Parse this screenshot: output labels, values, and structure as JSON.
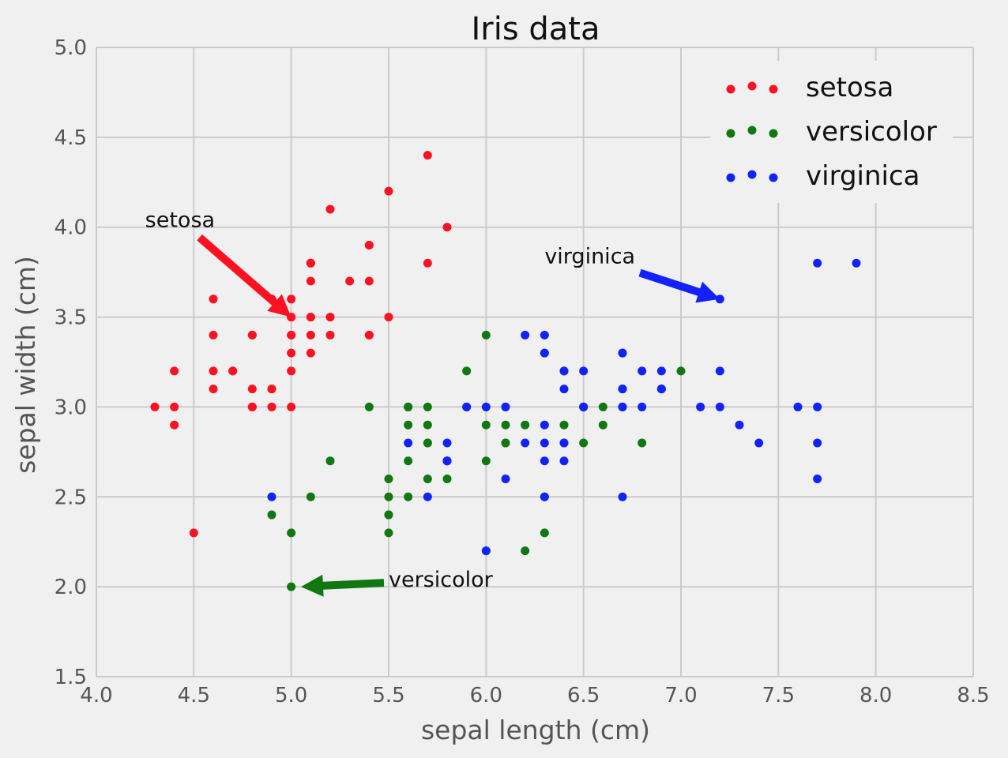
{
  "chart_data": {
    "type": "scatter",
    "title": "Iris data",
    "xlabel": "sepal length (cm)",
    "ylabel": "sepal width (cm)",
    "xlim": [
      4.0,
      8.5
    ],
    "ylim": [
      1.5,
      5.0
    ],
    "xticks": [
      "4.0",
      "4.5",
      "5.0",
      "5.5",
      "6.0",
      "6.5",
      "7.0",
      "7.5",
      "8.0",
      "8.5"
    ],
    "yticks": [
      "1.5",
      "2.0",
      "2.5",
      "3.0",
      "3.5",
      "4.0",
      "4.5",
      "5.0"
    ],
    "grid": true,
    "legend_position": "top-right",
    "series": [
      {
        "name": "setosa",
        "color": "#ff1122",
        "points": [
          [
            5.1,
            3.5
          ],
          [
            4.9,
            3.0
          ],
          [
            4.7,
            3.2
          ],
          [
            4.6,
            3.1
          ],
          [
            5.0,
            3.6
          ],
          [
            5.4,
            3.9
          ],
          [
            4.6,
            3.4
          ],
          [
            5.0,
            3.4
          ],
          [
            4.4,
            2.9
          ],
          [
            4.9,
            3.1
          ],
          [
            5.4,
            3.7
          ],
          [
            4.8,
            3.4
          ],
          [
            4.8,
            3.0
          ],
          [
            4.3,
            3.0
          ],
          [
            5.8,
            4.0
          ],
          [
            5.7,
            4.4
          ],
          [
            5.4,
            3.9
          ],
          [
            5.1,
            3.5
          ],
          [
            5.7,
            3.8
          ],
          [
            5.1,
            3.8
          ],
          [
            5.4,
            3.4
          ],
          [
            5.1,
            3.7
          ],
          [
            4.6,
            3.6
          ],
          [
            5.1,
            3.3
          ],
          [
            4.8,
            3.4
          ],
          [
            5.0,
            3.0
          ],
          [
            5.0,
            3.4
          ],
          [
            5.2,
            3.5
          ],
          [
            5.2,
            3.4
          ],
          [
            4.7,
            3.2
          ],
          [
            4.8,
            3.1
          ],
          [
            5.4,
            3.4
          ],
          [
            5.2,
            4.1
          ],
          [
            5.5,
            4.2
          ],
          [
            4.9,
            3.1
          ],
          [
            5.0,
            3.2
          ],
          [
            5.5,
            3.5
          ],
          [
            4.9,
            3.6
          ],
          [
            4.4,
            3.0
          ],
          [
            5.1,
            3.4
          ],
          [
            5.0,
            3.5
          ],
          [
            4.5,
            2.3
          ],
          [
            4.4,
            3.2
          ],
          [
            5.0,
            3.5
          ],
          [
            5.1,
            3.8
          ],
          [
            4.8,
            3.0
          ],
          [
            5.1,
            3.8
          ],
          [
            4.6,
            3.2
          ],
          [
            5.3,
            3.7
          ],
          [
            5.0,
            3.3
          ]
        ]
      },
      {
        "name": "versicolor",
        "color": "#117711",
        "points": [
          [
            7.0,
            3.2
          ],
          [
            6.4,
            3.2
          ],
          [
            6.9,
            3.1
          ],
          [
            5.5,
            2.3
          ],
          [
            6.5,
            2.8
          ],
          [
            5.7,
            2.8
          ],
          [
            6.3,
            3.3
          ],
          [
            4.9,
            2.4
          ],
          [
            6.6,
            2.9
          ],
          [
            5.2,
            2.7
          ],
          [
            5.0,
            2.0
          ],
          [
            5.9,
            3.0
          ],
          [
            6.0,
            2.2
          ],
          [
            6.1,
            2.9
          ],
          [
            5.6,
            2.9
          ],
          [
            6.7,
            3.1
          ],
          [
            5.6,
            3.0
          ],
          [
            5.8,
            2.7
          ],
          [
            6.2,
            2.2
          ],
          [
            5.6,
            2.5
          ],
          [
            5.9,
            3.2
          ],
          [
            6.1,
            2.8
          ],
          [
            6.3,
            2.5
          ],
          [
            6.1,
            2.8
          ],
          [
            6.4,
            2.9
          ],
          [
            6.6,
            3.0
          ],
          [
            6.8,
            2.8
          ],
          [
            6.7,
            3.0
          ],
          [
            6.0,
            2.9
          ],
          [
            5.7,
            2.6
          ],
          [
            5.5,
            2.4
          ],
          [
            5.5,
            2.4
          ],
          [
            5.8,
            2.7
          ],
          [
            6.0,
            2.7
          ],
          [
            5.4,
            3.0
          ],
          [
            6.0,
            3.4
          ],
          [
            6.7,
            3.1
          ],
          [
            6.3,
            2.3
          ],
          [
            5.6,
            3.0
          ],
          [
            5.5,
            2.5
          ],
          [
            5.5,
            2.6
          ],
          [
            6.1,
            3.0
          ],
          [
            5.8,
            2.6
          ],
          [
            5.0,
            2.3
          ],
          [
            5.6,
            2.7
          ],
          [
            5.7,
            3.0
          ],
          [
            5.7,
            2.9
          ],
          [
            6.2,
            2.9
          ],
          [
            5.1,
            2.5
          ],
          [
            5.7,
            2.8
          ]
        ]
      },
      {
        "name": "virginica",
        "color": "#1122ff",
        "points": [
          [
            6.3,
            3.3
          ],
          [
            5.8,
            2.7
          ],
          [
            7.1,
            3.0
          ],
          [
            6.3,
            2.9
          ],
          [
            6.5,
            3.0
          ],
          [
            7.6,
            3.0
          ],
          [
            4.9,
            2.5
          ],
          [
            7.3,
            2.9
          ],
          [
            6.7,
            2.5
          ],
          [
            7.2,
            3.6
          ],
          [
            6.5,
            3.2
          ],
          [
            6.4,
            2.7
          ],
          [
            6.8,
            3.0
          ],
          [
            5.7,
            2.5
          ],
          [
            5.8,
            2.8
          ],
          [
            6.4,
            3.2
          ],
          [
            6.5,
            3.0
          ],
          [
            7.7,
            3.8
          ],
          [
            7.7,
            2.6
          ],
          [
            6.0,
            2.2
          ],
          [
            6.9,
            3.2
          ],
          [
            5.6,
            2.8
          ],
          [
            7.7,
            2.8
          ],
          [
            6.3,
            2.7
          ],
          [
            6.7,
            3.3
          ],
          [
            7.2,
            3.2
          ],
          [
            6.2,
            2.8
          ],
          [
            6.1,
            3.0
          ],
          [
            6.4,
            2.8
          ],
          [
            7.2,
            3.0
          ],
          [
            7.4,
            2.8
          ],
          [
            7.9,
            3.8
          ],
          [
            6.4,
            2.8
          ],
          [
            6.3,
            2.8
          ],
          [
            6.1,
            2.6
          ],
          [
            7.7,
            3.0
          ],
          [
            6.3,
            3.4
          ],
          [
            6.4,
            3.1
          ],
          [
            6.0,
            3.0
          ],
          [
            6.9,
            3.1
          ],
          [
            6.7,
            3.1
          ],
          [
            6.9,
            3.1
          ],
          [
            5.8,
            2.7
          ],
          [
            6.8,
            3.2
          ],
          [
            6.7,
            3.3
          ],
          [
            6.7,
            3.0
          ],
          [
            6.3,
            2.5
          ],
          [
            6.5,
            3.0
          ],
          [
            6.2,
            3.4
          ],
          [
            5.9,
            3.0
          ]
        ]
      }
    ],
    "annotations": [
      {
        "text": "setosa",
        "color": "#ff1122",
        "point": [
          5.0,
          3.5
        ],
        "text_at": [
          4.25,
          4.0
        ]
      },
      {
        "text": "virginica",
        "color": "#1122ff",
        "point": [
          7.2,
          3.6
        ],
        "text_at": [
          6.3,
          3.8
        ]
      },
      {
        "text": "versicolor",
        "color": "#117711",
        "point": [
          5.05,
          2.0
        ],
        "text_at": [
          5.5,
          2.0
        ]
      }
    ]
  }
}
